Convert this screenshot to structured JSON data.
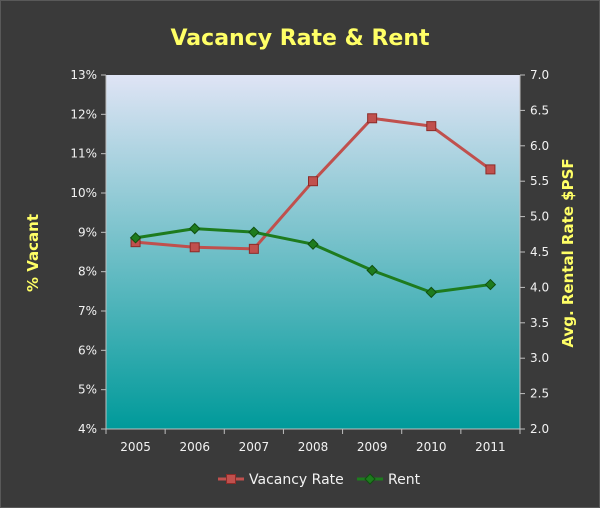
{
  "chart_data": {
    "type": "line",
    "title": "Vacancy Rate & Rent",
    "categories": [
      "2005",
      "2006",
      "2007",
      "2008",
      "2009",
      "2010",
      "2011"
    ],
    "y_left": {
      "label": "% Vacant",
      "range": [
        4,
        13
      ],
      "ticks": [
        "4%",
        "5%",
        "6%",
        "7%",
        "8%",
        "9%",
        "10%",
        "11%",
        "12%",
        "13%"
      ]
    },
    "y_right": {
      "label": "Avg. Rental Rate $PSF",
      "range": [
        2.0,
        7.0
      ],
      "ticks": [
        "2.0",
        "2.5",
        "3.0",
        "3.5",
        "4.0",
        "4.5",
        "5.0",
        "5.5",
        "6.0",
        "6.5",
        "7.0"
      ]
    },
    "series": [
      {
        "name": "Vacancy Rate",
        "axis": "left",
        "color": "#c0504d",
        "marker": "square",
        "values": [
          8.75,
          8.62,
          8.58,
          10.3,
          11.9,
          11.7,
          10.6
        ]
      },
      {
        "name": "Rent",
        "axis": "right",
        "color": "#1e7b1e",
        "marker": "diamond",
        "values": [
          4.7,
          4.83,
          4.78,
          4.61,
          4.24,
          3.93,
          4.04
        ]
      }
    ],
    "grid": false,
    "legend_position": "bottom",
    "colors": {
      "background": "#3a3a3a",
      "plot_top": "#dfe4f5",
      "plot_bottom": "#009a9a",
      "text_accent": "#ffff66",
      "tick_text": "#f2f2f2"
    }
  }
}
